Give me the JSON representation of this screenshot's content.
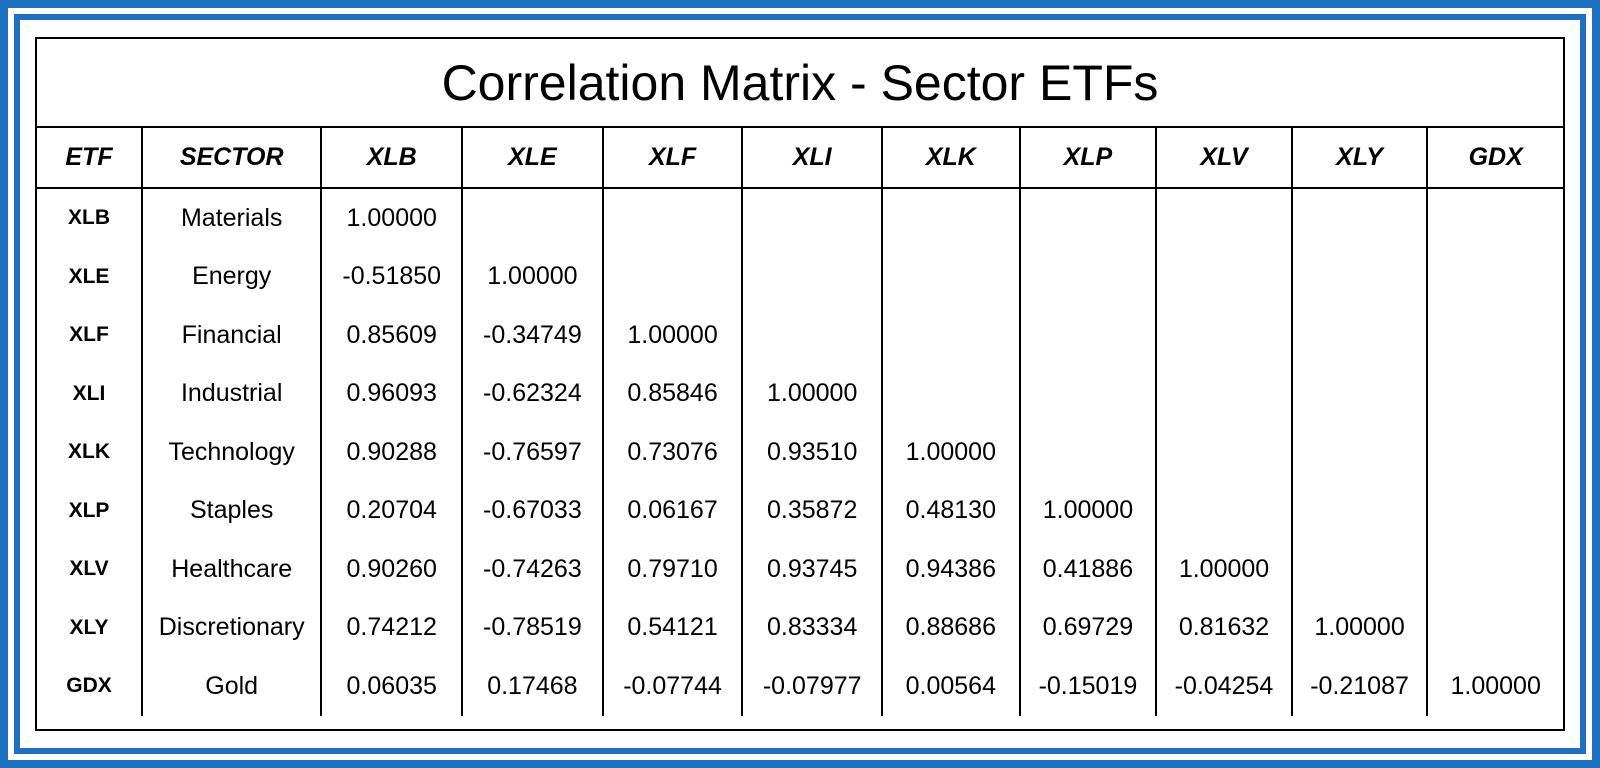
{
  "colors": {
    "frame": "#1f6fc0",
    "background": "#ffffff",
    "text": "#000000"
  },
  "chart_data": {
    "type": "table",
    "title": "Correlation Matrix - Sector ETFs",
    "columns": [
      "ETF",
      "SECTOR",
      "XLB",
      "XLE",
      "XLF",
      "XLI",
      "XLK",
      "XLP",
      "XLV",
      "XLY",
      "GDX"
    ],
    "rows": [
      {
        "etf": "XLB",
        "sector": "Materials",
        "values": [
          "1.00000",
          "",
          "",
          "",
          "",
          "",
          "",
          "",
          ""
        ]
      },
      {
        "etf": "XLE",
        "sector": "Energy",
        "values": [
          "-0.51850",
          "1.00000",
          "",
          "",
          "",
          "",
          "",
          "",
          ""
        ]
      },
      {
        "etf": "XLF",
        "sector": "Financial",
        "values": [
          "0.85609",
          "-0.34749",
          "1.00000",
          "",
          "",
          "",
          "",
          "",
          ""
        ]
      },
      {
        "etf": "XLI",
        "sector": "Industrial",
        "values": [
          "0.96093",
          "-0.62324",
          "0.85846",
          "1.00000",
          "",
          "",
          "",
          "",
          ""
        ]
      },
      {
        "etf": "XLK",
        "sector": "Technology",
        "values": [
          "0.90288",
          "-0.76597",
          "0.73076",
          "0.93510",
          "1.00000",
          "",
          "",
          "",
          ""
        ]
      },
      {
        "etf": "XLP",
        "sector": "Staples",
        "values": [
          "0.20704",
          "-0.67033",
          "0.06167",
          "0.35872",
          "0.48130",
          "1.00000",
          "",
          "",
          ""
        ]
      },
      {
        "etf": "XLV",
        "sector": "Healthcare",
        "values": [
          "0.90260",
          "-0.74263",
          "0.79710",
          "0.93745",
          "0.94386",
          "0.41886",
          "1.00000",
          "",
          ""
        ]
      },
      {
        "etf": "XLY",
        "sector": "Discretionary",
        "values": [
          "0.74212",
          "-0.78519",
          "0.54121",
          "0.83334",
          "0.88686",
          "0.69729",
          "0.81632",
          "1.00000",
          ""
        ]
      },
      {
        "etf": "GDX",
        "sector": "Gold",
        "values": [
          "0.06035",
          "0.17468",
          "-0.07744",
          "-0.07977",
          "0.00564",
          "-0.15019",
          "-0.04254",
          "-0.21087",
          "1.00000"
        ]
      }
    ]
  }
}
